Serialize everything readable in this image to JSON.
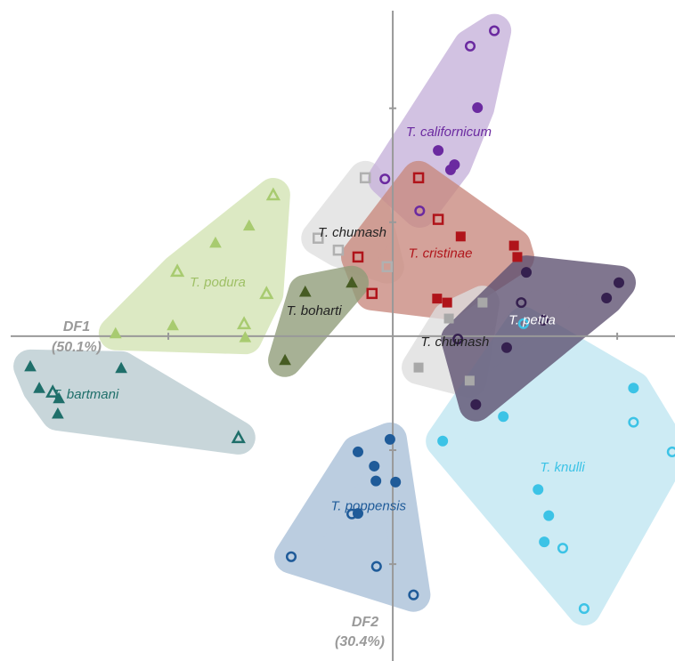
{
  "chart_data": {
    "type": "scatter",
    "xlabel": [
      "DF1",
      "(50.1%)"
    ],
    "ylabel": [
      "DF2",
      "(30.4%)"
    ],
    "xlim": [
      -7,
      5.03
    ],
    "ylim": [
      -5.7,
      5.9
    ],
    "xticks": [
      -4,
      4
    ],
    "yticks": [
      -4,
      -2,
      2,
      4
    ],
    "series": [
      {
        "name": "T. podura",
        "color": "#a8cb70",
        "hull_color": "#d3e4b3",
        "label_color": "#9fc066",
        "marker": "triangle",
        "x": [
          -2.13,
          -3.84,
          -2.25,
          -2.65,
          -2.56,
          -3.16,
          -3.92,
          -4.94,
          -2.63
        ],
        "values": [
          2.48,
          1.14,
          0.75,
          0.22,
          1.94,
          1.64,
          0.19,
          0.05,
          -0.02
        ],
        "filled": [
          false,
          false,
          false,
          false,
          true,
          true,
          true,
          true,
          true
        ]
      },
      {
        "name": "T. bartmani",
        "color": "#1f6f6a",
        "hull_color": "#b9cbd0",
        "label_color": "#1f6f6a",
        "marker": "triangle",
        "x": [
          -6.46,
          -4.84,
          -6.3,
          -5.95,
          -5.97,
          -6.06,
          -2.75
        ],
        "values": [
          -0.53,
          -0.56,
          -0.91,
          -1.09,
          -1.36,
          -0.98,
          -1.78
        ],
        "filled": [
          true,
          true,
          true,
          true,
          true,
          false,
          false
        ]
      },
      {
        "name": "T. chumash",
        "color": "#b0b0b0",
        "hull_color": "#e0e0e0",
        "label_color": "#222222",
        "marker": "square",
        "x": [
          -0.49,
          -1.33,
          -0.97,
          -0.1
        ],
        "values": [
          2.78,
          1.72,
          1.51,
          1.22
        ],
        "filled": [
          false,
          false,
          false,
          false
        ]
      },
      {
        "name": "T. californicum",
        "color": "#6b2aa0",
        "hull_color": "#c6b1da",
        "label_color": "#6b2aa0",
        "marker": "circle",
        "x": [
          1.81,
          1.38,
          -0.14,
          0.48,
          1.51,
          0.81,
          1.1,
          1.03
        ],
        "values": [
          5.36,
          5.09,
          2.76,
          2.2,
          4.01,
          3.26,
          3.01,
          2.92
        ],
        "filled": [
          false,
          false,
          false,
          false,
          true,
          true,
          true,
          true
        ]
      },
      {
        "name": "T. cristinae",
        "color": "#b0141a",
        "hull_color": "#c9897e",
        "label_color": "#b0141a",
        "marker": "square",
        "x": [
          0.46,
          0.81,
          -0.62,
          -0.37,
          1.21,
          2.16,
          2.22,
          0.79,
          0.97
        ],
        "values": [
          2.78,
          2.05,
          1.39,
          0.75,
          1.75,
          1.59,
          1.39,
          0.66,
          0.59
        ],
        "filled": [
          false,
          false,
          false,
          false,
          true,
          true,
          true,
          true,
          true
        ]
      },
      {
        "name": "T. boharti",
        "color": "#475c23",
        "hull_color": "#8f9c78",
        "label_color": "#222222",
        "marker": "triangle",
        "x": [
          -1.56,
          -0.73,
          -1.92
        ],
        "values": [
          0.78,
          0.94,
          -0.42
        ],
        "filled": [
          true,
          true,
          true
        ]
      },
      {
        "name": "T. chumash",
        "color": "#a8a8a8",
        "hull_color": "#dedede",
        "label_color": "#222222",
        "marker": "square",
        "x": [
          1.0,
          1.6,
          0.46,
          1.37
        ],
        "values": [
          0.31,
          0.59,
          -0.55,
          -0.78
        ],
        "filled": [
          true,
          true,
          true,
          true
        ]
      },
      {
        "name": "T. knulli",
        "color": "#3cc3e6",
        "hull_color": "#bfe6f2",
        "label_color": "#3cc3e6",
        "marker": "circle",
        "x": [
          4.29,
          1.97,
          0.89,
          2.59,
          2.78,
          2.7,
          4.29,
          4.98,
          3.03,
          3.41,
          2.33
        ],
        "values": [
          -0.91,
          -1.41,
          -1.84,
          -2.69,
          -3.15,
          -3.61,
          -1.51,
          -2.03,
          -3.72,
          -4.78,
          0.22
        ],
        "filled": [
          true,
          true,
          true,
          true,
          true,
          true,
          false,
          false,
          false,
          false,
          false
        ]
      },
      {
        "name": "T. petita",
        "color": "#35204f",
        "hull_color": "#5d5070",
        "label_color": "#ffffff",
        "marker": "circle",
        "x": [
          2.38,
          3.81,
          4.03,
          2.03,
          1.48,
          2.29,
          2.68,
          1.16
        ],
        "values": [
          1.12,
          0.67,
          0.94,
          -0.2,
          -1.2,
          0.59,
          0.28,
          -0.05
        ],
        "filled": [
          true,
          true,
          true,
          true,
          true,
          false,
          false,
          false
        ]
      },
      {
        "name": "T. poppensis",
        "color": "#1f5b99",
        "hull_color": "#a9bfd8",
        "label_color": "#1f5b99",
        "marker": "circle",
        "x": [
          -0.05,
          -0.62,
          -0.33,
          -0.3,
          0.05,
          -0.62,
          -0.73,
          -1.81,
          -0.29,
          0.37
        ],
        "values": [
          -1.81,
          -2.03,
          -2.28,
          -2.54,
          -2.56,
          -3.11,
          -3.12,
          -3.87,
          -4.04,
          -4.54
        ],
        "filled": [
          true,
          true,
          true,
          true,
          true,
          true,
          false,
          false,
          false,
          false
        ]
      }
    ]
  }
}
